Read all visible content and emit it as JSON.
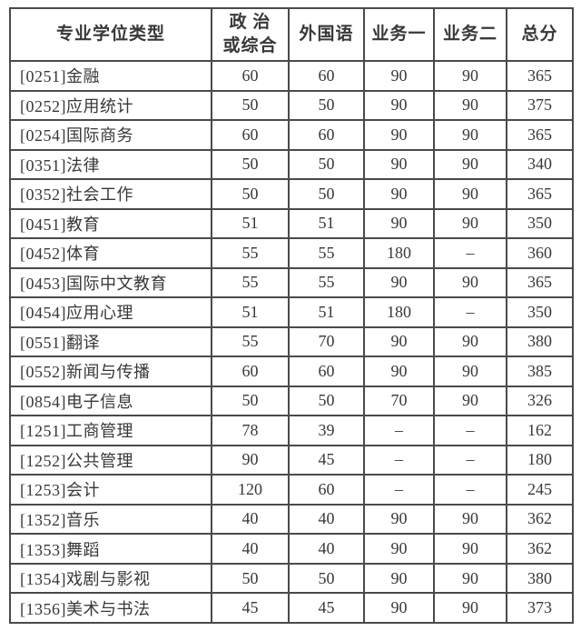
{
  "colors": {
    "background": "#ffffff",
    "border": "#4a4a4a",
    "text": "#383838"
  },
  "table": {
    "columns": [
      "专业学位类型",
      "政 治\n或综合",
      "外国语",
      "业务一",
      "业务二",
      "总分"
    ],
    "rows": [
      [
        "[0251]金融",
        "60",
        "60",
        "90",
        "90",
        "365"
      ],
      [
        "[0252]应用统计",
        "50",
        "50",
        "90",
        "90",
        "375"
      ],
      [
        "[0254]国际商务",
        "60",
        "60",
        "90",
        "90",
        "365"
      ],
      [
        "[0351]法律",
        "50",
        "50",
        "90",
        "90",
        "340"
      ],
      [
        "[0352]社会工作",
        "50",
        "50",
        "90",
        "90",
        "365"
      ],
      [
        "[0451]教育",
        "51",
        "51",
        "90",
        "90",
        "350"
      ],
      [
        "[0452]体育",
        "55",
        "55",
        "180",
        "–",
        "360"
      ],
      [
        "[0453]国际中文教育",
        "55",
        "55",
        "90",
        "90",
        "365"
      ],
      [
        "[0454]应用心理",
        "51",
        "51",
        "180",
        "–",
        "350"
      ],
      [
        "[0551]翻译",
        "55",
        "70",
        "90",
        "90",
        "380"
      ],
      [
        "[0552]新闻与传播",
        "60",
        "60",
        "90",
        "90",
        "385"
      ],
      [
        "[0854]电子信息",
        "50",
        "50",
        "70",
        "90",
        "326"
      ],
      [
        "[1251]工商管理",
        "78",
        "39",
        "–",
        "–",
        "162"
      ],
      [
        "[1252]公共管理",
        "90",
        "45",
        "–",
        "–",
        "180"
      ],
      [
        "[1253]会计",
        "120",
        "60",
        "–",
        "–",
        "245"
      ],
      [
        "[1352]音乐",
        "40",
        "40",
        "90",
        "90",
        "362"
      ],
      [
        "[1353]舞蹈",
        "40",
        "40",
        "90",
        "90",
        "362"
      ],
      [
        "[1354]戏剧与影视",
        "50",
        "50",
        "90",
        "90",
        "380"
      ],
      [
        "[1356]美术与书法",
        "45",
        "45",
        "90",
        "90",
        "373"
      ]
    ]
  },
  "chart_data": {
    "type": "table",
    "title": "",
    "columns": [
      "专业学位类型",
      "政治或综合",
      "外国语",
      "业务一",
      "业务二",
      "总分"
    ],
    "rows": [
      [
        "[0251]金融",
        60,
        60,
        90,
        90,
        365
      ],
      [
        "[0252]应用统计",
        50,
        50,
        90,
        90,
        375
      ],
      [
        "[0254]国际商务",
        60,
        60,
        90,
        90,
        365
      ],
      [
        "[0351]法律",
        50,
        50,
        90,
        90,
        340
      ],
      [
        "[0352]社会工作",
        50,
        50,
        90,
        90,
        365
      ],
      [
        "[0451]教育",
        51,
        51,
        90,
        90,
        350
      ],
      [
        "[0452]体育",
        55,
        55,
        180,
        null,
        360
      ],
      [
        "[0453]国际中文教育",
        55,
        55,
        90,
        90,
        365
      ],
      [
        "[0454]应用心理",
        51,
        51,
        180,
        null,
        350
      ],
      [
        "[0551]翻译",
        55,
        70,
        90,
        90,
        380
      ],
      [
        "[0552]新闻与传播",
        60,
        60,
        90,
        90,
        385
      ],
      [
        "[0854]电子信息",
        50,
        50,
        70,
        90,
        326
      ],
      [
        "[1251]工商管理",
        78,
        39,
        null,
        null,
        162
      ],
      [
        "[1252]公共管理",
        90,
        45,
        null,
        null,
        180
      ],
      [
        "[1253]会计",
        120,
        60,
        null,
        null,
        245
      ],
      [
        "[1352]音乐",
        40,
        40,
        90,
        90,
        362
      ],
      [
        "[1353]舞蹈",
        40,
        40,
        90,
        90,
        362
      ],
      [
        "[1354]戏剧与影视",
        50,
        50,
        90,
        90,
        380
      ],
      [
        "[1356]美术与书法",
        45,
        45,
        90,
        90,
        373
      ]
    ]
  }
}
